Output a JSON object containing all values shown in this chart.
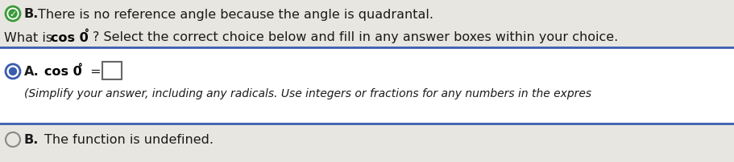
{
  "background_color": "#e8e6e0",
  "white_box_color": "#ffffff",
  "line1_prefix": "B.  ",
  "line1_text": "There is no reference angle because the angle is quadrantal.",
  "line2_pre": "What is ",
  "line2_bold": "cos 0",
  "line2_deg": "°",
  "line2_post": "? Select the correct choice below and fill in any answer boxes within your choice.",
  "optionA_label": "A.",
  "optionA_cos": "cos 0",
  "optionA_deg": "°",
  "optionA_eq": " =",
  "optionA_sub": "(Simplify your answer, including any radicals. Use integers or fractions for any numbers in the expres",
  "optionB_label": "B.",
  "optionB_text": "The function is undefined.",
  "box_border_color": "#3a5dae",
  "radio_selected_color": "#3a5dae",
  "radio_selected_dot": "#3a5dae",
  "radio_unselected_color": "#888888",
  "checkmark_green": "#3a9a3a",
  "text_color": "#1a1a1a",
  "bold_color": "#000000",
  "ans_box_border": "#666666",
  "font_size_main": 11.5,
  "font_size_sub": 10.0,
  "font_size_label": 11.5
}
